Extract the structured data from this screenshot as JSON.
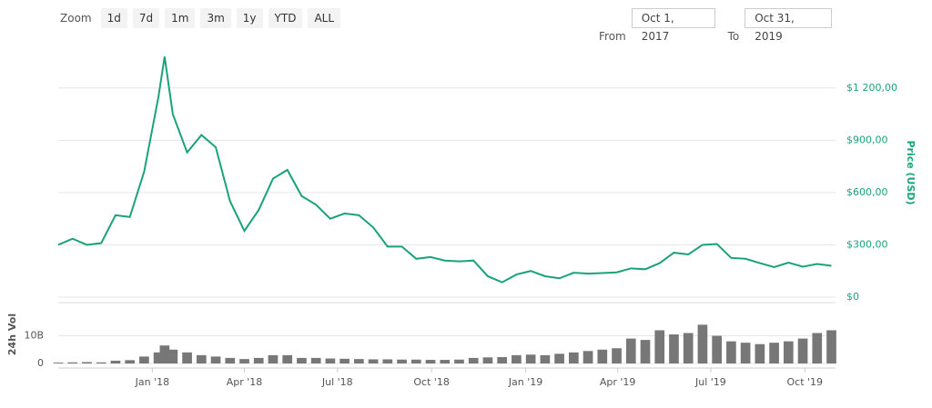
{
  "toolbar": {
    "zoom_label": "Zoom",
    "zoom_buttons": [
      "1d",
      "7d",
      "1m",
      "3m",
      "1y",
      "YTD",
      "ALL"
    ],
    "from_label": "From",
    "from_value": "Oct 1, 2017",
    "to_label": "To",
    "to_value": "Oct 31, 2019"
  },
  "chart_data": {
    "type": "line",
    "x": [
      "2017-10-01",
      "2017-10-15",
      "2017-10-29",
      "2017-11-12",
      "2017-11-26",
      "2017-12-10",
      "2017-12-24",
      "2018-01-07",
      "2018-01-13",
      "2018-01-21",
      "2018-02-04",
      "2018-02-18",
      "2018-03-04",
      "2018-03-18",
      "2018-04-01",
      "2018-04-15",
      "2018-04-29",
      "2018-05-13",
      "2018-05-27",
      "2018-06-10",
      "2018-06-24",
      "2018-07-08",
      "2018-07-22",
      "2018-08-05",
      "2018-08-19",
      "2018-09-02",
      "2018-09-16",
      "2018-09-30",
      "2018-10-14",
      "2018-10-28",
      "2018-11-11",
      "2018-11-25",
      "2018-12-09",
      "2018-12-23",
      "2019-01-06",
      "2019-01-20",
      "2019-02-03",
      "2019-02-17",
      "2019-03-03",
      "2019-03-17",
      "2019-03-31",
      "2019-04-14",
      "2019-04-28",
      "2019-05-12",
      "2019-05-26",
      "2019-06-09",
      "2019-06-23",
      "2019-07-07",
      "2019-07-21",
      "2019-08-04",
      "2019-08-18",
      "2019-09-01",
      "2019-09-15",
      "2019-09-29",
      "2019-10-13",
      "2019-10-27"
    ],
    "xlim": [
      "2017-10-01",
      "2019-10-31"
    ],
    "xticks": [
      {
        "value": "2018-01-01",
        "label": "Jan '18"
      },
      {
        "value": "2018-04-01",
        "label": "Apr '18"
      },
      {
        "value": "2018-07-01",
        "label": "Jul '18"
      },
      {
        "value": "2018-10-01",
        "label": "Oct '18"
      },
      {
        "value": "2019-01-01",
        "label": "Jan '19"
      },
      {
        "value": "2019-04-01",
        "label": "Apr '19"
      },
      {
        "value": "2019-07-01",
        "label": "Jul '19"
      },
      {
        "value": "2019-10-01",
        "label": "Oct '19"
      }
    ],
    "ylim": [
      0,
      1470
    ],
    "yticks": [
      {
        "value": 0,
        "label": "$0"
      },
      {
        "value": 300,
        "label": "$300,00"
      },
      {
        "value": 600,
        "label": "$600,00"
      },
      {
        "value": 900,
        "label": "$900,00"
      },
      {
        "value": 1200,
        "label": "$1 200,00"
      }
    ],
    "y2lim": [
      0,
      22000000000.0
    ],
    "y2ticks": [
      0,
      {
        "value": 10000000000.0,
        "label": "10B"
      }
    ],
    "grid": true,
    "series": [
      {
        "name": "Price (USD)",
        "color": "#1aa37a",
        "values": [
          300,
          335,
          300,
          310,
          470,
          460,
          720,
          1150,
          1380,
          1050,
          830,
          930,
          860,
          550,
          380,
          500,
          680,
          730,
          580,
          530,
          450,
          480,
          470,
          400,
          290,
          290,
          220,
          230,
          210,
          205,
          210,
          120,
          85,
          130,
          150,
          120,
          108,
          140,
          135,
          138,
          142,
          165,
          160,
          195,
          255,
          245,
          300,
          305,
          225,
          220,
          195,
          172,
          198,
          175,
          190,
          180
        ]
      },
      {
        "name": "24h Vol",
        "color": "#777777",
        "type": "bar",
        "axis": "y2",
        "values": [
          300000000.0,
          400000000.0,
          500000000.0,
          400000000.0,
          1000000000.0,
          1200000000.0,
          2500000000.0,
          4000000000.0,
          6500000000.0,
          5000000000.0,
          4000000000.0,
          3000000000.0,
          2500000000.0,
          2000000000.0,
          1600000000.0,
          2000000000.0,
          3000000000.0,
          3000000000.0,
          2000000000.0,
          2000000000.0,
          1800000000.0,
          1700000000.0,
          1600000000.0,
          1500000000.0,
          1500000000.0,
          1400000000.0,
          1400000000.0,
          1300000000.0,
          1300000000.0,
          1400000000.0,
          2000000000.0,
          2200000000.0,
          2300000000.0,
          3000000000.0,
          3200000000.0,
          3000000000.0,
          3500000000.0,
          4000000000.0,
          4500000000.0,
          5000000000.0,
          5500000000.0,
          9000000000.0,
          8500000000.0,
          12000000000.0,
          10500000000.0,
          11000000000.0,
          14000000000.0,
          10000000000.0,
          8000000000.0,
          7500000000.0,
          7000000000.0,
          7500000000.0,
          8000000000.0,
          9000000000.0,
          11000000000.0,
          12000000000.0
        ]
      }
    ]
  }
}
